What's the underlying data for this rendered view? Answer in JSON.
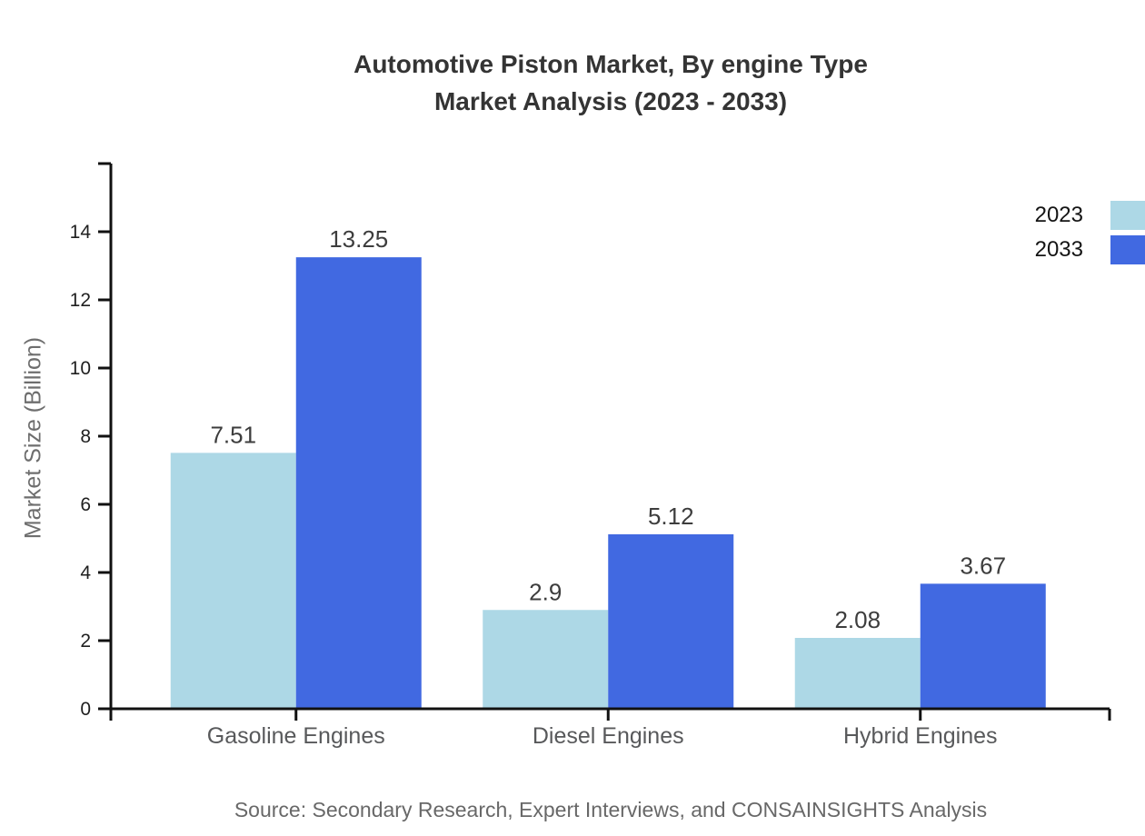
{
  "chart_data": {
    "type": "bar",
    "title": "Automotive Piston Market, By engine Type",
    "subtitle": "Market Analysis (2023 - 2033)",
    "categories": [
      "Gasoline Engines",
      "Diesel Engines",
      "Hybrid Engines"
    ],
    "series": [
      {
        "name": "2023",
        "color": "#ADD8E6",
        "values": [
          7.51,
          2.9,
          2.08
        ]
      },
      {
        "name": "2033",
        "color": "#4169E1",
        "values": [
          13.25,
          5.12,
          3.67
        ]
      }
    ],
    "xlabel": "",
    "ylabel": "Market Size (Billion)",
    "ylim": [
      0,
      16
    ],
    "yticks": [
      0,
      2,
      4,
      6,
      8,
      10,
      12,
      14
    ],
    "grid": false,
    "legend_position": "top-right",
    "value_label_format": "as-written",
    "source": "Source: Secondary Research, Expert Interviews, and CONSAINSIGHTS Analysis",
    "colors": {
      "background": "#ffffff",
      "axis": "#111111",
      "title_text": "#343434",
      "value_label": "#3d3d3d",
      "category_label": "#58595b",
      "tick_label": "#1f1f1f",
      "legend_text": "#141414",
      "axis_title": "#6e6e6e",
      "source_text": "#686868"
    }
  }
}
